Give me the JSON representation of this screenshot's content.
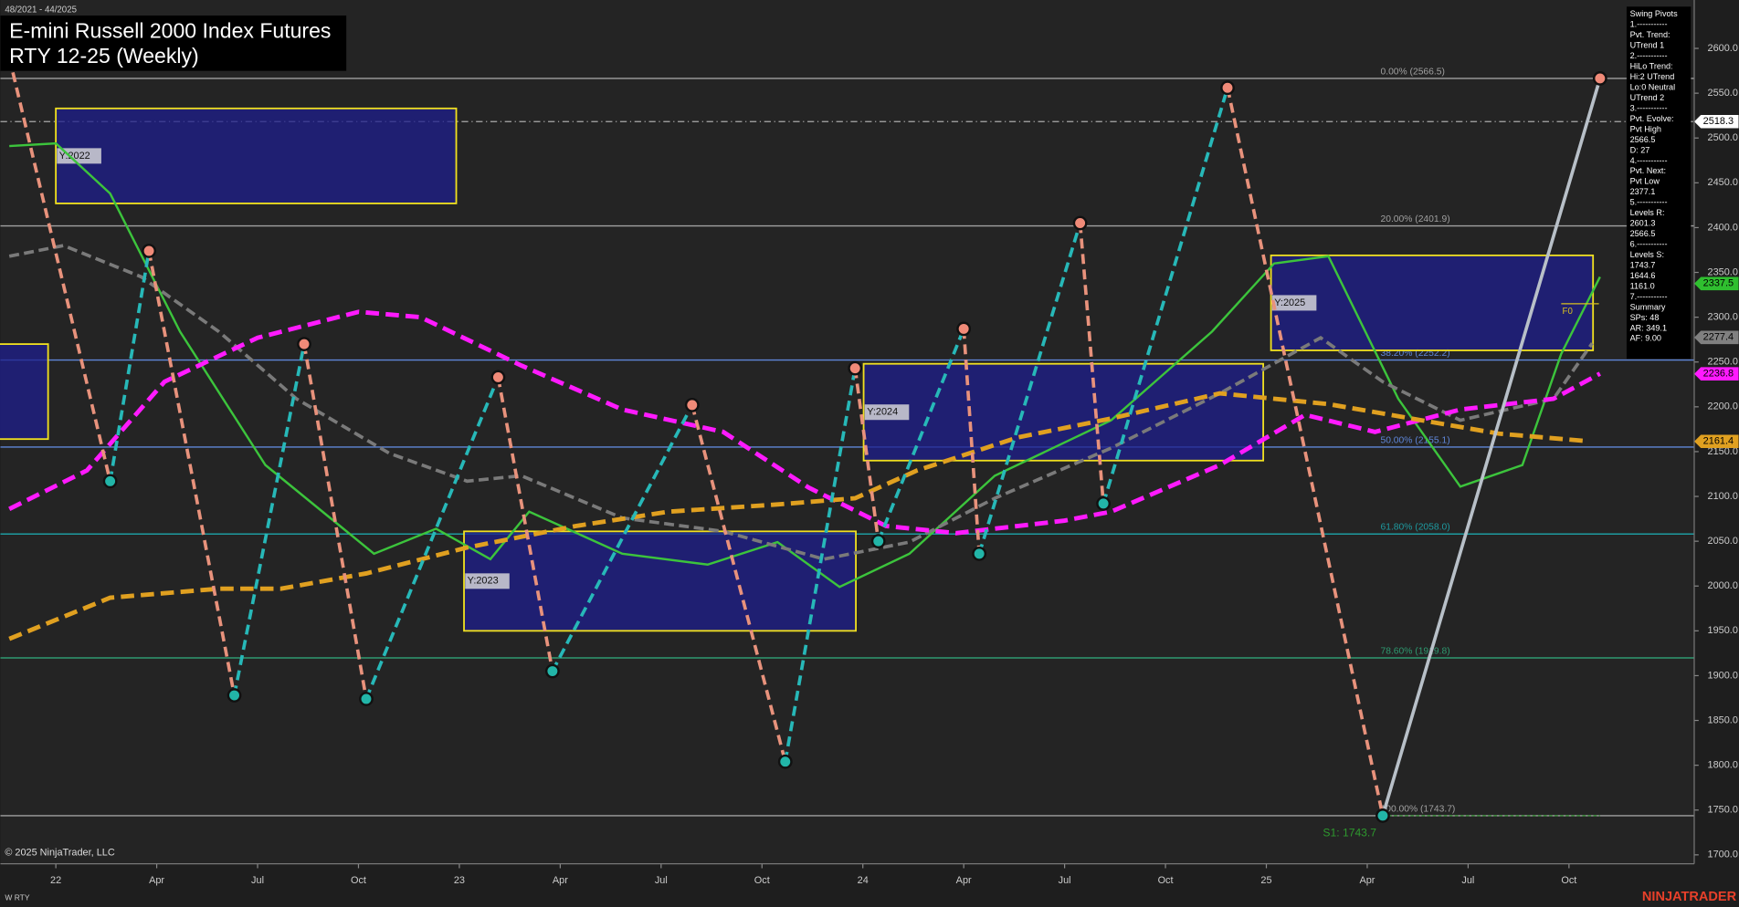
{
  "chart_data": {
    "type": "line",
    "header": "48/2021 - 44/2025",
    "title": "E-mini Russell 2000 Index Futures",
    "subtitle": "RTY 12-25 (Weekly)",
    "xlim": [
      -7.14,
      211.14
    ],
    "ylim": [
      1690,
      2654
    ],
    "xticks": [
      {
        "value": 0,
        "label": "22"
      },
      {
        "value": 13,
        "label": "Apr"
      },
      {
        "value": 26,
        "label": "Jul"
      },
      {
        "value": 39,
        "label": "Oct"
      },
      {
        "value": 52,
        "label": "23"
      },
      {
        "value": 65,
        "label": "Apr"
      },
      {
        "value": 78,
        "label": "Jul"
      },
      {
        "value": 91,
        "label": "Oct"
      },
      {
        "value": 104,
        "label": "24"
      },
      {
        "value": 117,
        "label": "Apr"
      },
      {
        "value": 130,
        "label": "Jul"
      },
      {
        "value": 143,
        "label": "Oct"
      },
      {
        "value": 156,
        "label": "25"
      },
      {
        "value": 169,
        "label": "Apr"
      },
      {
        "value": 182,
        "label": "Jul"
      },
      {
        "value": 195,
        "label": "Oct"
      }
    ],
    "yticks": [
      {
        "value": 1700,
        "label": "1700.0"
      },
      {
        "value": 1750,
        "label": "1750.0"
      },
      {
        "value": 1800,
        "label": "1800.0"
      },
      {
        "value": 1850,
        "label": "1850.0"
      },
      {
        "value": 1900,
        "label": "1900.0"
      },
      {
        "value": 1950,
        "label": "1950.0"
      },
      {
        "value": 2000,
        "label": "2000.0"
      },
      {
        "value": 2050,
        "label": "2050.0"
      },
      {
        "value": 2100,
        "label": "2100.0"
      },
      {
        "value": 2150,
        "label": "2150.0"
      },
      {
        "value": 2200,
        "label": "2200.0"
      },
      {
        "value": 2250,
        "label": "2250.0"
      },
      {
        "value": 2300,
        "label": "2300.0"
      },
      {
        "value": 2350,
        "label": "2350.0"
      },
      {
        "value": 2400,
        "label": "2400.0"
      },
      {
        "value": 2450,
        "label": "2450.0"
      },
      {
        "value": 2500,
        "label": "2500.0"
      },
      {
        "value": 2550,
        "label": "2550.0"
      },
      {
        "value": 2600,
        "label": "2600.0"
      }
    ],
    "series": [
      {
        "color": "#3cc43c",
        "dashed": false,
        "width": 2,
        "x": [
          -6,
          0,
          7,
          16,
          27,
          41,
          49,
          56,
          61,
          73,
          84,
          93,
          101,
          110,
          121,
          136,
          149,
          157,
          164,
          173,
          181,
          189,
          194,
          199
        ],
        "values": [
          2491,
          2494,
          2438,
          2284,
          2135,
          2036,
          2064,
          2030,
          2083,
          2036,
          2024,
          2049,
          1999,
          2036,
          2123,
          2185,
          2284,
          2360,
          2368,
          2209,
          2111,
          2135,
          2259,
          2345
        ]
      },
      {
        "color": "#7a7a7a",
        "dashed": true,
        "width": 3,
        "x": [
          -6,
          1,
          11,
          21,
          31,
          43,
          53,
          60,
          73,
          86,
          99,
          110,
          121,
          136,
          150,
          163,
          171,
          181,
          193,
          198
        ],
        "values": [
          2368,
          2380,
          2345,
          2284,
          2209,
          2148,
          2117,
          2123,
          2076,
          2061,
          2030,
          2049,
          2098,
          2154,
          2215,
          2277,
          2228,
          2185,
          2209,
          2271
        ]
      },
      {
        "color": "#ff1aff",
        "dashed": true,
        "width": 4,
        "x": [
          -6,
          4,
          14,
          26,
          39,
          47,
          60,
          73,
          86,
          97,
          107,
          116,
          130,
          136,
          150,
          161,
          170,
          181,
          193,
          199
        ],
        "values": [
          2086,
          2129,
          2228,
          2277,
          2306,
          2300,
          2246,
          2197,
          2172,
          2110,
          2067,
          2059,
          2073,
          2083,
          2135,
          2191,
          2172,
          2197,
          2209,
          2237
        ]
      },
      {
        "color": "#e0a020",
        "dashed": true,
        "width": 4,
        "x": [
          -6,
          7,
          21,
          29,
          40,
          53,
          67,
          79,
          93,
          103,
          111,
          124,
          136,
          150,
          164,
          176,
          186,
          197
        ],
        "values": [
          1941,
          1987,
          1997,
          1997,
          2014,
          2043,
          2067,
          2083,
          2091,
          2098,
          2129,
          2166,
          2187,
          2215,
          2203,
          2185,
          2170,
          2162
        ]
      }
    ],
    "pivots": {
      "high_color": "#f08a78",
      "low_color": "#22b5a8",
      "up_color": "#27b8b8",
      "down_color": "#e8927c",
      "last_color": "#b8c0c8",
      "x": [
        -6,
        7,
        12,
        23,
        32,
        40,
        57,
        64,
        82,
        94,
        103,
        106,
        117,
        119,
        132,
        135,
        151,
        171,
        199
      ],
      "values": [
        2590,
        2117,
        2374,
        1878,
        2270,
        1874,
        2233,
        1905,
        2202,
        1804,
        2243,
        2050,
        2287,
        2036,
        2405,
        2092,
        2556,
        1743.7,
        2566.5
      ]
    },
    "fib_levels": [
      {
        "value": 2566.5,
        "label": "0.00% (2566.5)",
        "color": "#a0a0a0"
      },
      {
        "value": 2401.9,
        "label": "20.00% (2401.9)",
        "color": "#a0a0a0"
      },
      {
        "value": 2252.2,
        "label": "38.20% (2252.2)",
        "color": "#5f86d8"
      },
      {
        "value": 2155.1,
        "label": "50.00% (2155.1)",
        "color": "#5f86d8"
      },
      {
        "value": 2058.0,
        "label": "61.80% (2058.0)",
        "color": "#1e9aa0"
      },
      {
        "value": 1919.8,
        "label": "78.60% (1919.8)",
        "color": "#2e9a70"
      },
      {
        "value": 1743.7,
        "label": "100.00% (1743.7)",
        "color": "#a0a0a0"
      }
    ],
    "year_boxes": [
      {
        "label": null,
        "x": [
          -8,
          -1
        ],
        "values": [
          2164,
          2270
        ]
      },
      {
        "label": "Y:2022",
        "x": [
          0,
          51.6
        ],
        "values": [
          2427,
          2533
        ]
      },
      {
        "label": "Y:2023",
        "x": [
          52.6,
          103.1
        ],
        "values": [
          1950,
          2061
        ]
      },
      {
        "label": "Y:2024",
        "x": [
          104.1,
          155.6
        ],
        "values": [
          2140,
          2248
        ]
      },
      {
        "label": "Y:2025",
        "x": [
          156.6,
          198.1
        ],
        "values": [
          2263,
          2369
        ]
      }
    ],
    "price_markers": [
      {
        "value": 2518.3,
        "color": "#ffffff",
        "text_color": "#000000"
      },
      {
        "value": 2337.5,
        "color": "#2fbf2f",
        "text_color": "#000000"
      },
      {
        "value": 2277.4,
        "color": "#808080",
        "text_color": "#000000"
      },
      {
        "value": 2236.8,
        "color": "#ff1aff",
        "text_color": "#000000"
      },
      {
        "value": 2161.4,
        "color": "#e0a020",
        "text_color": "#000000"
      }
    ],
    "s1": {
      "value": 1743.7,
      "label": "S1: 1743.7"
    },
    "f0": {
      "value": 2315,
      "label": "F0"
    },
    "sidebar": [
      "Swing Pivots",
      "1.-----------",
      "Pvt. Trend:",
      "UTrend 1",
      "2.-----------",
      "HiLo Trend:",
      "Hi:2 UTrend",
      "Lo:0 Neutral",
      "UTrend 2",
      "3.-----------",
      "Pvt. Evolve:",
      "Pvt High",
      "2566.5",
      "D: 27",
      "4.-----------",
      "Pvt. Next:",
      "Pvt Low",
      "2377.1",
      "5.-----------",
      "Levels R:",
      "2601.3",
      "2566.5",
      "6.-----------",
      "Levels S:",
      "1743.7",
      "1644.6",
      "1161.0",
      "7.-----------",
      "Summary",
      "SPs: 48",
      "AR: 349.1",
      "AF: 9.00"
    ],
    "copyright": "© 2025 NinjaTrader, LLC",
    "instrument": "W RTY",
    "brand": "NINJATRADER"
  }
}
